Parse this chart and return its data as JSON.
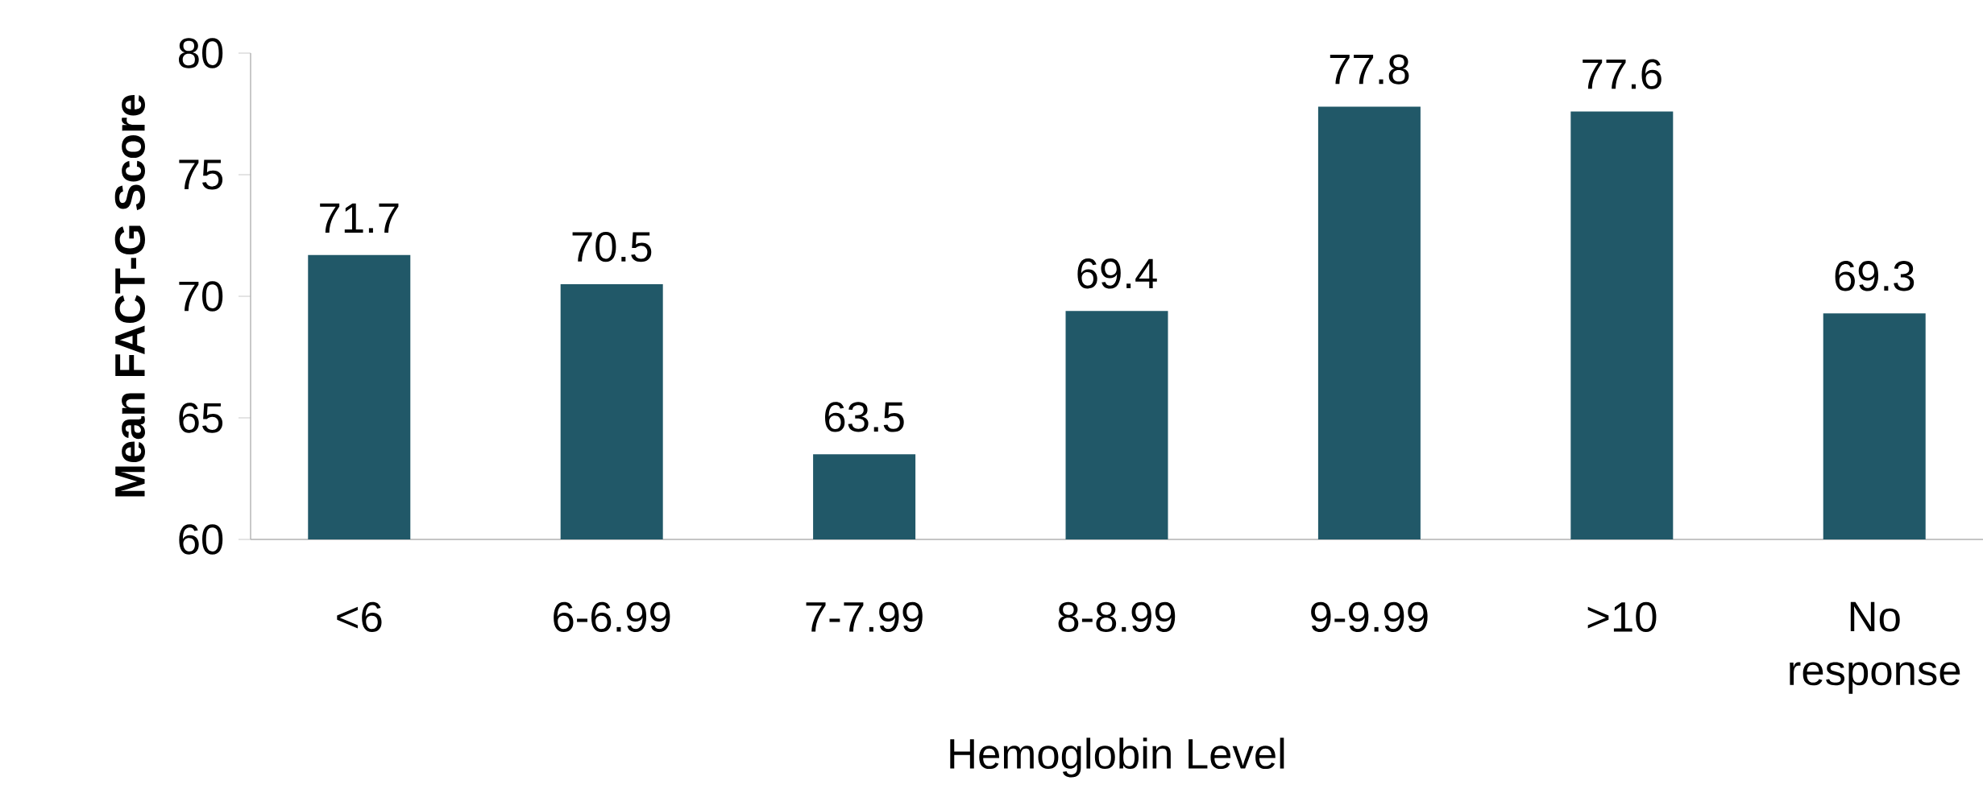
{
  "chart_data": {
    "type": "bar",
    "xlabel": "Hemoglobin Level",
    "ylabel": "Mean FACT-G Score",
    "categories": [
      "<6",
      "6-6.99",
      "7-7.99",
      "8-8.99",
      "9-9.99",
      ">10",
      "No response"
    ],
    "values": [
      71.7,
      70.5,
      63.5,
      69.4,
      77.8,
      77.6,
      69.3
    ],
    "color": "#215868",
    "ylim": [
      60,
      80
    ],
    "yticks": [
      60,
      65,
      70,
      75,
      80
    ],
    "data_labels": true,
    "grid": false
  }
}
